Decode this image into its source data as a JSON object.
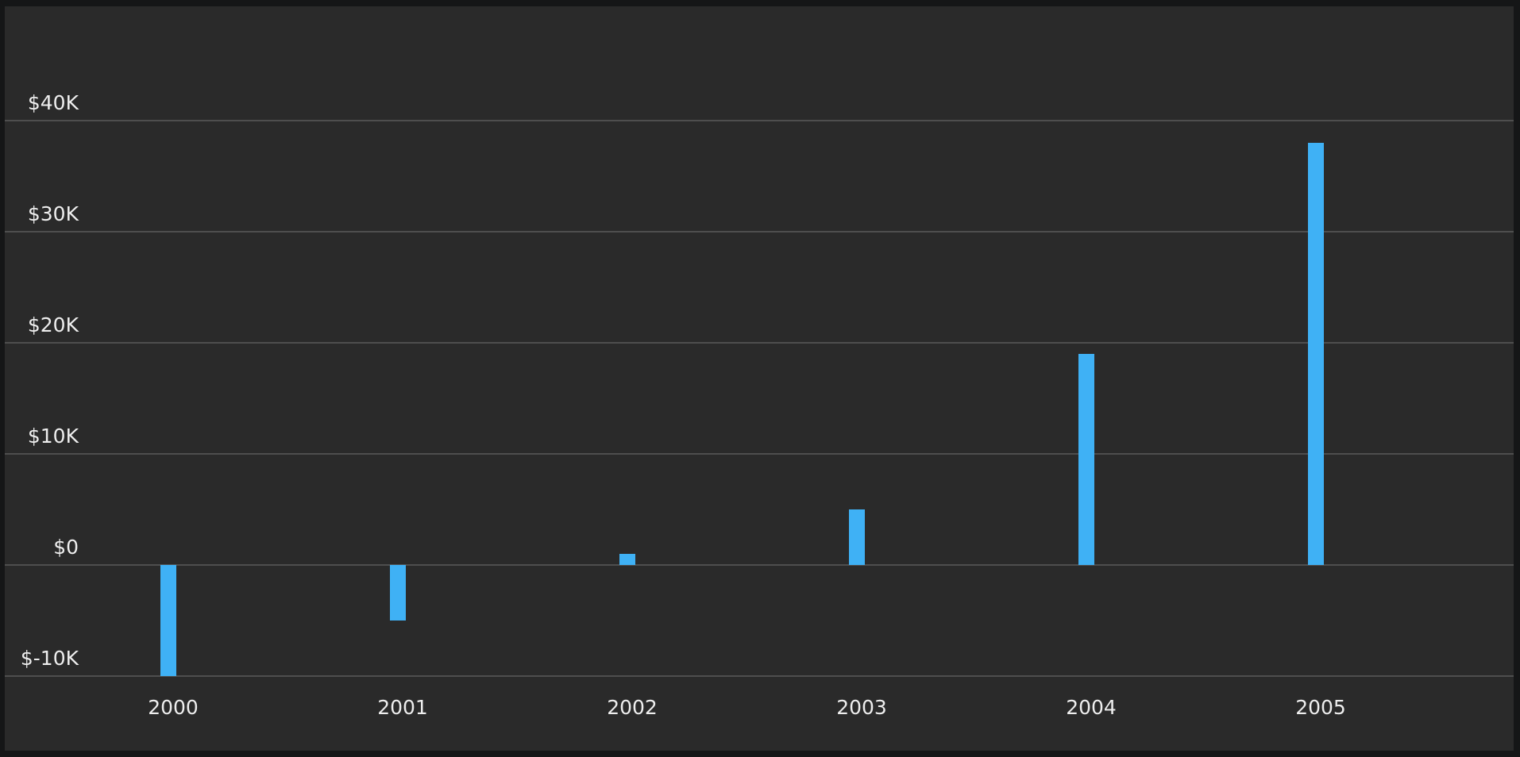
{
  "chart_data": {
    "type": "bar",
    "categories": [
      "2000",
      "2001",
      "2002",
      "2003",
      "2004",
      "2005"
    ],
    "values": [
      -10000,
      -5000,
      1000,
      5000,
      19000,
      38000
    ],
    "title": "",
    "xlabel": "",
    "ylabel": "",
    "ylim": [
      -10000,
      40000
    ],
    "y_ticks": [
      "$-10K",
      "$0",
      "$10K",
      "$20K",
      "$30K",
      "$40K"
    ],
    "y_tick_values": [
      -10000,
      0,
      10000,
      20000,
      30000,
      40000
    ],
    "grid": true,
    "legend": "none",
    "colors": {
      "background": "#2a2a2a",
      "frame": "#151617",
      "bar": "#3fb1f5",
      "grid": "#5b5b5b",
      "text": "#eeeeee"
    }
  }
}
